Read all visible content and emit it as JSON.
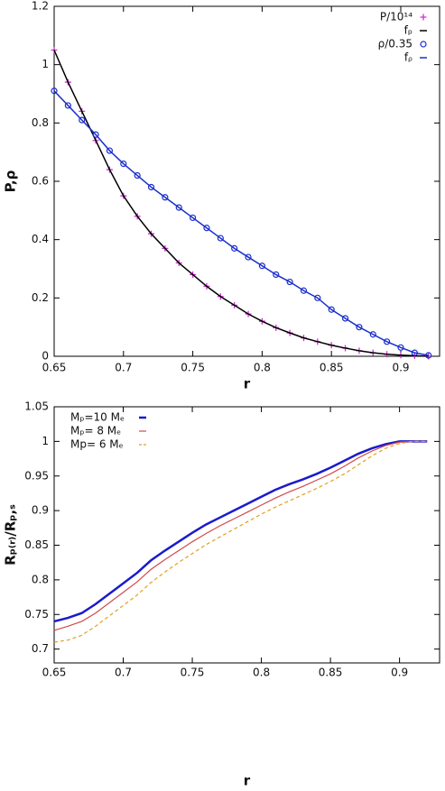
{
  "chart_data": [
    {
      "type": "line",
      "ylabel": "P,ρ",
      "xlabel": "r",
      "legend": "top-right",
      "xlim": [
        0.65,
        0.928
      ],
      "ylim": [
        0,
        1.2
      ],
      "xticks": [
        0.65,
        0.7,
        0.75,
        0.8,
        0.85,
        0.9
      ],
      "yticks": [
        0,
        0.2,
        0.4,
        0.6,
        0.8,
        1,
        1.2
      ],
      "x": [
        0.65,
        0.66,
        0.67,
        0.68,
        0.69,
        0.7,
        0.71,
        0.72,
        0.73,
        0.74,
        0.75,
        0.76,
        0.77,
        0.78,
        0.79,
        0.8,
        0.81,
        0.82,
        0.83,
        0.84,
        0.85,
        0.86,
        0.87,
        0.88,
        0.89,
        0.9,
        0.91,
        0.92
      ],
      "series": [
        {
          "name": "P/10¹⁴",
          "color": "#cc33cc",
          "style": "points",
          "marker": "plus",
          "values": [
            1.05,
            0.94,
            0.84,
            0.74,
            0.64,
            0.55,
            0.48,
            0.42,
            0.37,
            0.32,
            0.28,
            0.24,
            0.205,
            0.175,
            0.145,
            0.12,
            0.098,
            0.08,
            0.063,
            0.05,
            0.038,
            0.028,
            0.019,
            0.012,
            0.007,
            0.004,
            0.002,
            0
          ]
        },
        {
          "name": "fₚ",
          "color": "#000000",
          "style": "line",
          "width": 1.5,
          "values": [
            1.05,
            0.94,
            0.84,
            0.74,
            0.64,
            0.55,
            0.48,
            0.42,
            0.37,
            0.32,
            0.28,
            0.24,
            0.205,
            0.175,
            0.145,
            0.12,
            0.098,
            0.08,
            0.063,
            0.05,
            0.038,
            0.028,
            0.019,
            0.012,
            0.007,
            0.004,
            0.002,
            0
          ]
        },
        {
          "name": "ρ/0.35",
          "color": "#1a2ecc",
          "style": "points",
          "marker": "circle",
          "values": [
            0.91,
            0.86,
            0.81,
            0.76,
            0.705,
            0.66,
            0.62,
            0.58,
            0.545,
            0.51,
            0.475,
            0.44,
            0.405,
            0.37,
            0.34,
            0.31,
            0.28,
            0.255,
            0.225,
            0.2,
            0.16,
            0.13,
            0.1,
            0.075,
            0.05,
            0.03,
            0.012,
            0.003
          ]
        },
        {
          "name": "fᵨ",
          "color": "#1a2ecc",
          "style": "line",
          "width": 1.5,
          "values": [
            0.91,
            0.86,
            0.81,
            0.76,
            0.705,
            0.66,
            0.62,
            0.58,
            0.545,
            0.51,
            0.475,
            0.44,
            0.405,
            0.37,
            0.34,
            0.31,
            0.28,
            0.255,
            0.225,
            0.2,
            0.16,
            0.13,
            0.1,
            0.075,
            0.05,
            0.03,
            0.012,
            0.003
          ]
        }
      ]
    },
    {
      "type": "line",
      "ylabel": "Rₚ₍ᵣ₎/Rₚ,ₛ",
      "xlabel": "r",
      "legend": "top-left",
      "xlim": [
        0.65,
        0.929
      ],
      "ylim": [
        0.68,
        1.05
      ],
      "xticks": [
        0.65,
        0.7,
        0.75,
        0.8,
        0.85,
        0.9
      ],
      "yticks": [
        0.7,
        0.75,
        0.8,
        0.85,
        0.9,
        0.95,
        1,
        1.05
      ],
      "x": [
        0.65,
        0.66,
        0.67,
        0.68,
        0.69,
        0.7,
        0.71,
        0.72,
        0.73,
        0.74,
        0.75,
        0.76,
        0.77,
        0.78,
        0.79,
        0.8,
        0.81,
        0.82,
        0.83,
        0.84,
        0.85,
        0.86,
        0.87,
        0.88,
        0.89,
        0.9,
        0.91,
        0.92
      ],
      "series": [
        {
          "name": "Mₚ=10 Mₑ",
          "color": "#1a1acc",
          "style": "line",
          "width": 2.5,
          "values": [
            0.74,
            0.745,
            0.752,
            0.765,
            0.78,
            0.795,
            0.81,
            0.828,
            0.842,
            0.855,
            0.868,
            0.88,
            0.89,
            0.9,
            0.91,
            0.92,
            0.93,
            0.938,
            0.945,
            0.953,
            0.962,
            0.972,
            0.982,
            0.99,
            0.996,
            1.0,
            1.0,
            1.0
          ]
        },
        {
          "name": "Mₚ=  8 Mₑ",
          "color": "#d04a4a",
          "style": "line",
          "width": 1.2,
          "values": [
            0.727,
            0.733,
            0.74,
            0.752,
            0.767,
            0.782,
            0.797,
            0.815,
            0.829,
            0.842,
            0.855,
            0.867,
            0.878,
            0.888,
            0.898,
            0.908,
            0.918,
            0.927,
            0.935,
            0.944,
            0.953,
            0.964,
            0.976,
            0.986,
            0.994,
            0.999,
            1.0,
            1.0
          ]
        },
        {
          "name": "Mp= 6 Mₑ",
          "color": "#e0a020",
          "style": "line",
          "width": 1.2,
          "dash": true,
          "values": [
            0.71,
            0.713,
            0.72,
            0.733,
            0.748,
            0.763,
            0.778,
            0.796,
            0.811,
            0.825,
            0.838,
            0.851,
            0.862,
            0.873,
            0.884,
            0.895,
            0.905,
            0.914,
            0.923,
            0.932,
            0.942,
            0.953,
            0.966,
            0.979,
            0.99,
            0.997,
            1.0,
            1.0
          ]
        }
      ]
    }
  ]
}
